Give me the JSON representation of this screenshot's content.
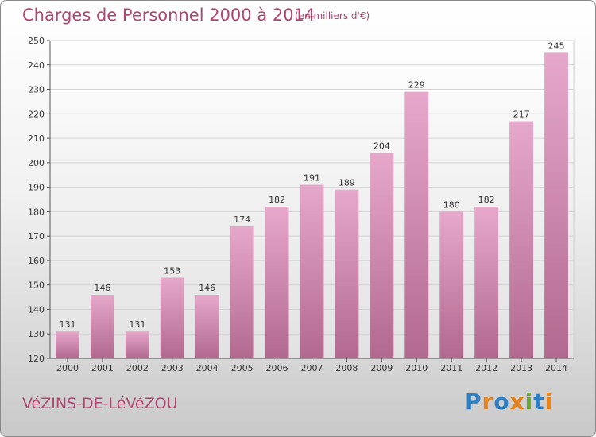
{
  "header": {
    "title": "Charges de Personnel 2000 à 2014",
    "subtitle": "(en milliers d'€)"
  },
  "footer": {
    "commune": "VéZINS-DE-LéVéZOU",
    "brand": "Proxiti"
  },
  "colors": {
    "bar_light": "#e6a8cb",
    "bar_dark": "#b2698f",
    "title": "#b0456f",
    "brand_letters": [
      "#2f7fc4",
      "#e8831b",
      "#2f7fc4",
      "#e8831b",
      "#6aa53a",
      "#2f7fc4",
      "#e8831b"
    ]
  },
  "chart_data": {
    "type": "bar",
    "categories": [
      "2000",
      "2001",
      "2002",
      "2003",
      "2004",
      "2005",
      "2006",
      "2007",
      "2008",
      "2009",
      "2010",
      "2011",
      "2012",
      "2013",
      "2014"
    ],
    "values": [
      131,
      146,
      131,
      153,
      146,
      174,
      182,
      191,
      189,
      204,
      229,
      180,
      182,
      217,
      245
    ],
    "ylim": [
      120,
      250
    ],
    "yticks": [
      120,
      130,
      140,
      150,
      160,
      170,
      180,
      190,
      200,
      210,
      220,
      230,
      240,
      250
    ],
    "grid": true,
    "legend": "none"
  }
}
